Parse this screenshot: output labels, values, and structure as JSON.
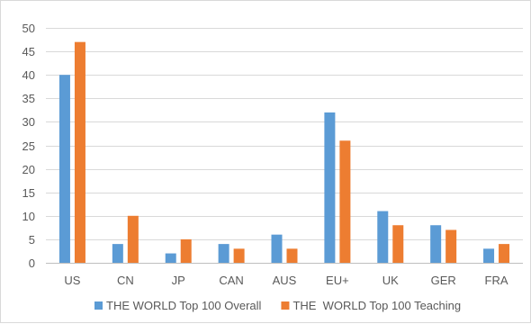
{
  "chart_data": {
    "type": "bar",
    "title": "",
    "xlabel": "",
    "ylabel": "",
    "ylim": [
      0,
      50
    ],
    "yticks": [
      0,
      5,
      10,
      15,
      20,
      25,
      30,
      35,
      40,
      45,
      50
    ],
    "grid": "horizontal",
    "legend_position": "bottom",
    "categories": [
      "US",
      "CN",
      "JP",
      "CAN",
      "AUS",
      "EU+",
      "UK",
      "GER",
      "FRA"
    ],
    "series": [
      {
        "name": "THE WORLD Top 100 Overall",
        "color": "#5b9bd5",
        "values": [
          40,
          4,
          2,
          4,
          6,
          32,
          11,
          8,
          3
        ]
      },
      {
        "name": "THE  WORLD Top 100 Teaching",
        "color": "#ed7d31",
        "values": [
          47,
          10,
          5,
          3,
          3,
          26,
          8,
          7,
          4
        ]
      }
    ]
  }
}
